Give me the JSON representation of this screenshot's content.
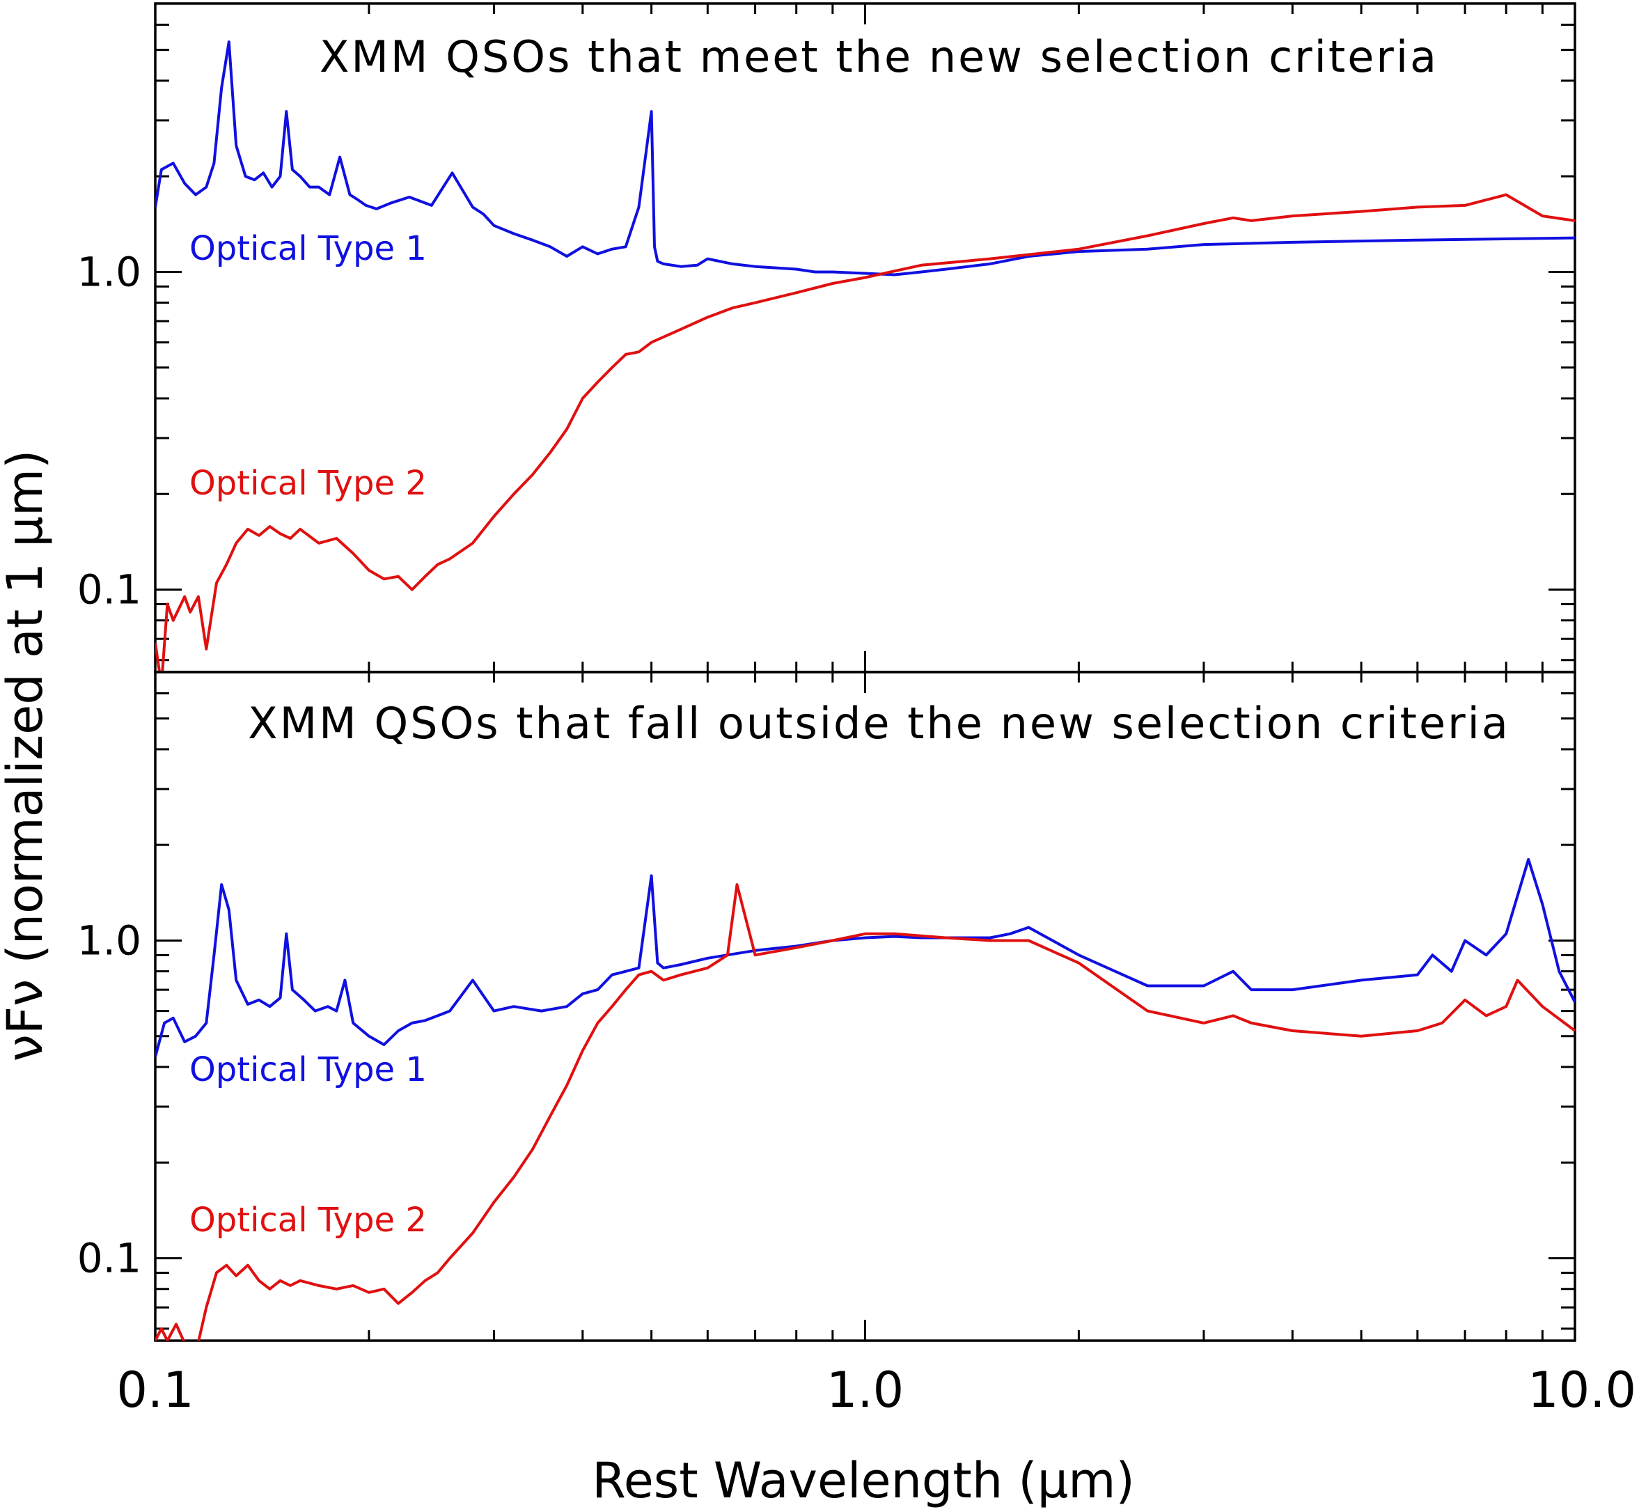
{
  "figure": {
    "xlabel": "Rest Wavelength (μm)",
    "ylabel": "νFν (normalized at 1 μm)"
  },
  "chart_data": [
    {
      "type": "line",
      "title": "XMM QSOs that meet the new selection criteria",
      "xscale": "log",
      "yscale": "log",
      "xlim": [
        0.1,
        10.0
      ],
      "ylim": [
        0.055,
        7.0
      ],
      "xticks": [
        "0.1",
        "1.0",
        "10.0"
      ],
      "yticks": [
        {
          "value": 0.1,
          "label": "0.1"
        },
        {
          "value": 1.0,
          "label": "1.0"
        }
      ],
      "colors": {
        "type1": "#1010e0",
        "type2": "#e01010"
      },
      "series": [
        {
          "name": "Optical Type 1",
          "key": "type1",
          "x": [
            0.1,
            0.102,
            0.106,
            0.11,
            0.114,
            0.118,
            0.121,
            0.124,
            0.127,
            0.13,
            0.134,
            0.138,
            0.142,
            0.146,
            0.15,
            0.153,
            0.156,
            0.16,
            0.165,
            0.17,
            0.176,
            0.182,
            0.188,
            0.192,
            0.198,
            0.205,
            0.215,
            0.228,
            0.245,
            0.262,
            0.28,
            0.29,
            0.3,
            0.32,
            0.34,
            0.36,
            0.38,
            0.4,
            0.42,
            0.44,
            0.46,
            0.48,
            0.5,
            0.505,
            0.51,
            0.52,
            0.55,
            0.58,
            0.6,
            0.65,
            0.7,
            0.8,
            0.85,
            0.9,
            1.0,
            1.1,
            1.2,
            1.3,
            1.5,
            1.7,
            2.0,
            2.5,
            3.0,
            4.0,
            6.0,
            10.0
          ],
          "y": [
            1.6,
            2.1,
            2.2,
            1.9,
            1.75,
            1.85,
            2.2,
            3.8,
            5.3,
            2.5,
            2.0,
            1.95,
            2.05,
            1.85,
            2.0,
            3.2,
            2.1,
            2.0,
            1.85,
            1.85,
            1.75,
            2.3,
            1.75,
            1.7,
            1.62,
            1.58,
            1.65,
            1.72,
            1.62,
            2.05,
            1.6,
            1.52,
            1.4,
            1.32,
            1.26,
            1.2,
            1.12,
            1.2,
            1.14,
            1.18,
            1.2,
            1.6,
            3.2,
            1.2,
            1.08,
            1.06,
            1.04,
            1.05,
            1.1,
            1.06,
            1.04,
            1.02,
            1.0,
            1.0,
            0.99,
            0.98,
            1.0,
            1.02,
            1.06,
            1.12,
            1.16,
            1.18,
            1.22,
            1.24,
            1.26,
            1.28
          ]
        },
        {
          "name": "Optical Type 2",
          "key": "type2",
          "x": [
            0.1,
            0.102,
            0.104,
            0.106,
            0.11,
            0.112,
            0.115,
            0.118,
            0.122,
            0.126,
            0.13,
            0.135,
            0.14,
            0.145,
            0.15,
            0.155,
            0.16,
            0.17,
            0.18,
            0.19,
            0.2,
            0.21,
            0.22,
            0.23,
            0.24,
            0.25,
            0.26,
            0.28,
            0.3,
            0.32,
            0.34,
            0.36,
            0.38,
            0.4,
            0.42,
            0.44,
            0.46,
            0.48,
            0.5,
            0.55,
            0.6,
            0.65,
            0.7,
            0.8,
            0.9,
            1.0,
            1.2,
            1.5,
            2.0,
            2.5,
            3.0,
            3.3,
            3.5,
            4.0,
            5.0,
            6.0,
            7.0,
            8.0,
            9.0,
            10.0
          ],
          "y": [
            0.068,
            0.05,
            0.09,
            0.08,
            0.095,
            0.085,
            0.095,
            0.065,
            0.105,
            0.12,
            0.14,
            0.155,
            0.148,
            0.158,
            0.15,
            0.145,
            0.155,
            0.14,
            0.145,
            0.13,
            0.115,
            0.108,
            0.11,
            0.1,
            0.11,
            0.12,
            0.125,
            0.14,
            0.17,
            0.2,
            0.23,
            0.27,
            0.32,
            0.4,
            0.45,
            0.5,
            0.55,
            0.56,
            0.6,
            0.66,
            0.72,
            0.77,
            0.8,
            0.86,
            0.92,
            0.96,
            1.05,
            1.1,
            1.18,
            1.3,
            1.42,
            1.48,
            1.45,
            1.5,
            1.55,
            1.6,
            1.62,
            1.75,
            1.5,
            1.45
          ]
        }
      ]
    },
    {
      "type": "line",
      "title": "XMM QSOs that fall outside the new selection criteria",
      "xscale": "log",
      "yscale": "log",
      "xlim": [
        0.1,
        10.0
      ],
      "ylim": [
        0.055,
        7.0
      ],
      "xticks": [
        "0.1",
        "1.0",
        "10.0"
      ],
      "yticks": [
        {
          "value": 0.1,
          "label": "0.1"
        },
        {
          "value": 1.0,
          "label": "1.0"
        }
      ],
      "colors": {
        "type1": "#1010e0",
        "type2": "#e01010"
      },
      "series": [
        {
          "name": "Optical Type 1",
          "key": "type1",
          "x": [
            0.1,
            0.103,
            0.106,
            0.11,
            0.114,
            0.118,
            0.121,
            0.124,
            0.127,
            0.13,
            0.135,
            0.14,
            0.145,
            0.15,
            0.153,
            0.156,
            0.162,
            0.168,
            0.175,
            0.18,
            0.185,
            0.19,
            0.2,
            0.21,
            0.22,
            0.23,
            0.24,
            0.25,
            0.26,
            0.28,
            0.3,
            0.32,
            0.35,
            0.38,
            0.4,
            0.42,
            0.44,
            0.46,
            0.48,
            0.5,
            0.51,
            0.52,
            0.55,
            0.6,
            0.7,
            0.8,
            0.9,
            1.0,
            1.1,
            1.2,
            1.3,
            1.5,
            1.6,
            1.7,
            2.0,
            2.5,
            3.0,
            3.3,
            3.5,
            4.0,
            5.0,
            6.0,
            6.3,
            6.7,
            7.0,
            7.5,
            8.0,
            8.6,
            9.0,
            9.5,
            10.0
          ],
          "y": [
            0.43,
            0.55,
            0.57,
            0.48,
            0.5,
            0.55,
            0.9,
            1.5,
            1.25,
            0.75,
            0.63,
            0.65,
            0.62,
            0.66,
            1.05,
            0.7,
            0.65,
            0.6,
            0.62,
            0.6,
            0.75,
            0.55,
            0.5,
            0.47,
            0.52,
            0.55,
            0.56,
            0.58,
            0.6,
            0.75,
            0.6,
            0.62,
            0.6,
            0.62,
            0.68,
            0.7,
            0.78,
            0.8,
            0.82,
            1.6,
            0.85,
            0.82,
            0.84,
            0.88,
            0.93,
            0.96,
            1.0,
            1.02,
            1.03,
            1.02,
            1.02,
            1.02,
            1.05,
            1.1,
            0.9,
            0.72,
            0.72,
            0.8,
            0.7,
            0.7,
            0.75,
            0.78,
            0.9,
            0.8,
            1.0,
            0.9,
            1.05,
            1.8,
            1.3,
            0.8,
            0.64
          ]
        },
        {
          "name": "Optical Type 2",
          "key": "type2",
          "x": [
            0.1,
            0.102,
            0.104,
            0.107,
            0.11,
            0.114,
            0.118,
            0.122,
            0.126,
            0.13,
            0.135,
            0.14,
            0.145,
            0.15,
            0.155,
            0.16,
            0.17,
            0.18,
            0.19,
            0.2,
            0.21,
            0.22,
            0.23,
            0.24,
            0.25,
            0.26,
            0.28,
            0.3,
            0.32,
            0.34,
            0.36,
            0.38,
            0.4,
            0.42,
            0.44,
            0.46,
            0.48,
            0.5,
            0.52,
            0.55,
            0.6,
            0.64,
            0.66,
            0.7,
            0.8,
            0.9,
            1.0,
            1.1,
            1.3,
            1.5,
            1.7,
            2.0,
            2.5,
            3.0,
            3.3,
            3.5,
            4.0,
            5.0,
            6.0,
            6.5,
            7.0,
            7.5,
            8.0,
            8.3,
            9.0,
            10.0
          ],
          "y": [
            0.055,
            0.06,
            0.055,
            0.062,
            0.054,
            0.05,
            0.07,
            0.09,
            0.095,
            0.088,
            0.095,
            0.085,
            0.08,
            0.085,
            0.082,
            0.085,
            0.082,
            0.08,
            0.082,
            0.078,
            0.08,
            0.072,
            0.078,
            0.085,
            0.09,
            0.1,
            0.12,
            0.15,
            0.18,
            0.22,
            0.28,
            0.35,
            0.45,
            0.55,
            0.62,
            0.7,
            0.78,
            0.8,
            0.75,
            0.78,
            0.82,
            0.9,
            1.5,
            0.9,
            0.95,
            1.0,
            1.05,
            1.05,
            1.02,
            1.0,
            1.0,
            0.85,
            0.6,
            0.55,
            0.58,
            0.55,
            0.52,
            0.5,
            0.52,
            0.55,
            0.65,
            0.58,
            0.62,
            0.75,
            0.62,
            0.52
          ]
        }
      ]
    }
  ]
}
